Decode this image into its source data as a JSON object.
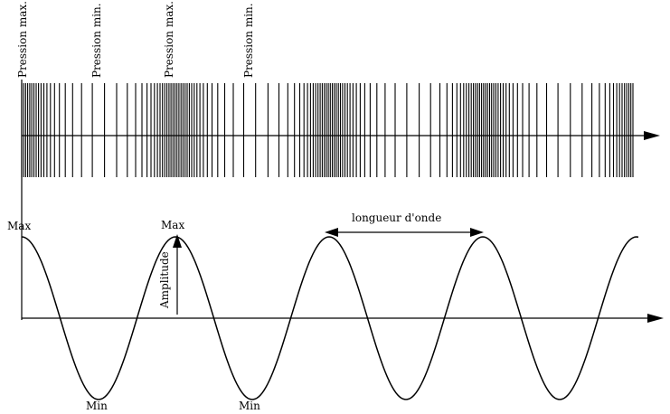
{
  "top_labels": [
    "Pression max.",
    "Pression min.",
    "Pression max.",
    "Pression min."
  ],
  "wave_labels": {
    "max_left": "Max",
    "max_second": "Max",
    "min_first": "Min",
    "min_second": "Min",
    "amplitude": "Amplitude",
    "wavelength": "longueur d'onde"
  },
  "wave": {
    "type": "cosine",
    "wavelength_in_periods": 1,
    "periods_shown": 4
  },
  "colors": {
    "ink": "#000000",
    "background": "#ffffff"
  }
}
